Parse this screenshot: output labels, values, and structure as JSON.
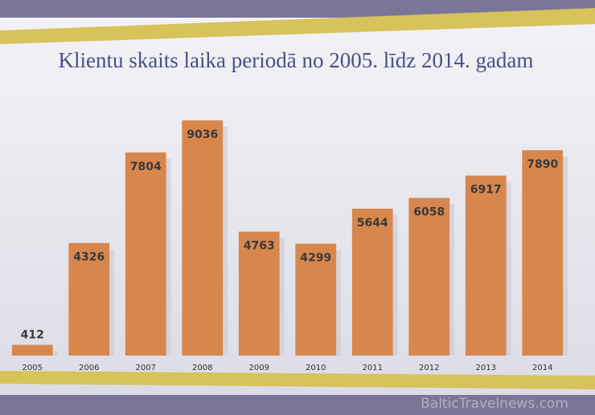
{
  "chart_data": {
    "type": "bar",
    "title": "Klientu skaits laika periodā no 2005. līdz 2014. gadam",
    "categories": [
      "2005",
      "2006",
      "2007",
      "2008",
      "2009",
      "2010",
      "2011",
      "2012",
      "2013",
      "2014"
    ],
    "values": [
      412,
      4326,
      7804,
      9036,
      4763,
      4299,
      5644,
      6058,
      6917,
      7890
    ],
    "color": "#d8874c"
  },
  "watermark": "BalticTravelnews.com"
}
